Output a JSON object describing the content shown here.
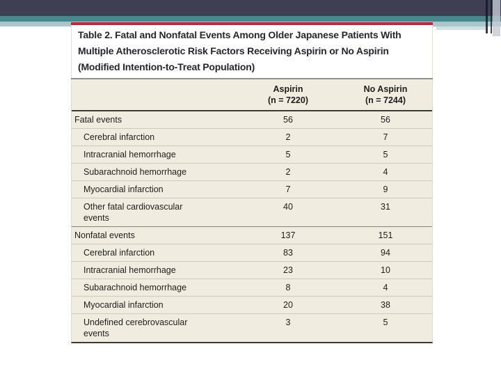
{
  "slide": {
    "background": "#ffffff",
    "decoration": {
      "top_bar_color": "#3e3f52",
      "teal_stripe_color": "#4a868c",
      "light_stripe_color": "#a9c6cb",
      "accent_band_color": "#d2e0e2"
    }
  },
  "table": {
    "accent_red": "#b42b3d",
    "body_background": "#f0ede0",
    "title": "Table 2. Fatal and Nonfatal Events Among Older Japanese Patients With\nMultiple Atherosclerotic Risk Factors Receiving Aspirin or No Aspirin\n(Modified Intention-to-Treat Population)",
    "columns": [
      "Aspirin\n(n = 7220)",
      "No Aspirin\n(n = 7244)"
    ],
    "rows": [
      {
        "label": "Fatal events",
        "values": [
          "56",
          "56"
        ],
        "indent": false,
        "group": true
      },
      {
        "label": "Cerebral infarction",
        "values": [
          "2",
          "7"
        ],
        "indent": true,
        "group": false
      },
      {
        "label": "Intracranial hemorrhage",
        "values": [
          "5",
          "5"
        ],
        "indent": true,
        "group": false
      },
      {
        "label": "Subarachnoid hemorrhage",
        "values": [
          "2",
          "4"
        ],
        "indent": true,
        "group": false
      },
      {
        "label": "Myocardial infarction",
        "values": [
          "7",
          "9"
        ],
        "indent": true,
        "group": false
      },
      {
        "label": "Other fatal cardiovascular\nevents",
        "values": [
          "40",
          "31"
        ],
        "indent": true,
        "group": false
      },
      {
        "label": "Nonfatal events",
        "values": [
          "137",
          "151"
        ],
        "indent": false,
        "group": true
      },
      {
        "label": "Cerebral infarction",
        "values": [
          "83",
          "94"
        ],
        "indent": true,
        "group": false
      },
      {
        "label": "Intracranial hemorrhage",
        "values": [
          "23",
          "10"
        ],
        "indent": true,
        "group": false
      },
      {
        "label": "Subarachnoid hemorrhage",
        "values": [
          "8",
          "4"
        ],
        "indent": true,
        "group": false
      },
      {
        "label": "Myocardial infarction",
        "values": [
          "20",
          "38"
        ],
        "indent": true,
        "group": false
      },
      {
        "label": "Undefined cerebrovascular\nevents",
        "values": [
          "3",
          "5"
        ],
        "indent": true,
        "group": false
      }
    ]
  }
}
